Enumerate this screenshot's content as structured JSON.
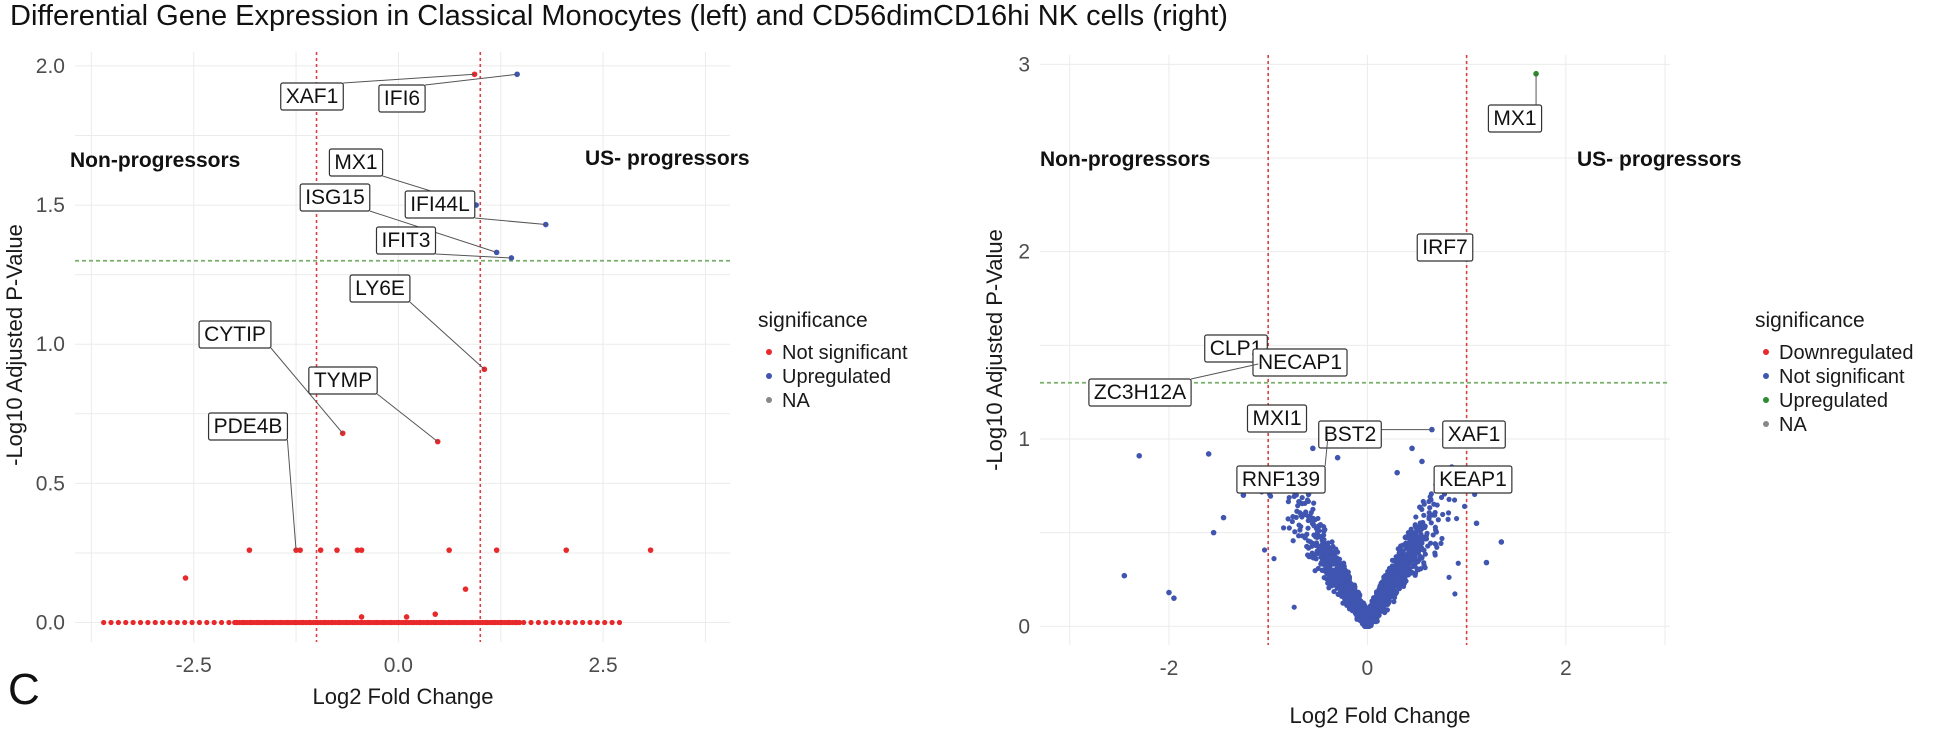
{
  "figure": {
    "title": "Differential Gene Expression in Classical Monocytes (left) and CD56dimCD16hi NK cells (right)",
    "panel_letter": "C"
  },
  "colors": {
    "red": "#e8292b",
    "blue": "#3f55b0",
    "green": "#2e8b2e",
    "grey": "#888888",
    "vline": "#d94040",
    "hline": "#77b06a",
    "grid": "#ebebeb"
  },
  "chart_data": [
    {
      "type": "scatter",
      "title": "",
      "xlabel": "Log2 Fold Change",
      "ylabel": "-Log10 Adjusted P-Value",
      "xlim": [
        -3.95,
        4.05
      ],
      "ylim": [
        -0.07,
        2.05
      ],
      "xticks": [
        -2.5,
        0.0,
        2.5
      ],
      "xtick_labels": [
        "-2.5",
        "0.0",
        "2.5"
      ],
      "yticks": [
        0.0,
        0.5,
        1.0,
        1.5,
        2.0
      ],
      "ytick_labels": [
        "0.0",
        "0.5",
        "1.0",
        "1.5",
        "2.0"
      ],
      "vlines": [
        -1,
        1
      ],
      "hline": 1.3,
      "group_labels": {
        "left": "Non-progressors",
        "right": "US- progressors"
      },
      "legend": {
        "title": "significance",
        "entries": [
          {
            "label": "Not significant",
            "color": "#e8292b"
          },
          {
            "label": "Upregulated",
            "color": "#3f55b0"
          },
          {
            "label": "NA",
            "color": "#888888"
          }
        ]
      },
      "series": [
        {
          "name": "Not significant",
          "color": "#e8292b",
          "points": [
            [
              0.93,
              1.97
            ],
            [
              1.05,
              0.91
            ],
            [
              0.48,
              0.65
            ],
            [
              -0.68,
              0.68
            ],
            [
              -1.82,
              0.26
            ],
            [
              -1.25,
              0.26
            ],
            [
              -1.2,
              0.26
            ],
            [
              -0.95,
              0.26
            ],
            [
              -0.75,
              0.26
            ],
            [
              -0.5,
              0.26
            ],
            [
              -0.45,
              0.26
            ],
            [
              0.62,
              0.26
            ],
            [
              1.2,
              0.26
            ],
            [
              2.05,
              0.26
            ],
            [
              3.08,
              0.26
            ],
            [
              -2.6,
              0.16
            ],
            [
              0.82,
              0.12
            ],
            [
              0.45,
              0.03
            ],
            [
              -0.45,
              0.02
            ],
            [
              0.1,
              0.02
            ]
          ]
        },
        {
          "name": "Upregulated",
          "color": "#3f55b0",
          "points": [
            [
              1.45,
              1.97
            ],
            [
              0.95,
              1.5
            ],
            [
              1.8,
              1.43
            ],
            [
              1.2,
              1.33
            ],
            [
              1.38,
              1.31
            ]
          ]
        },
        {
          "name": "baseline",
          "color": "#e8292b",
          "baseline": {
            "y": 0.0,
            "xmin": -3.6,
            "xmax": 2.7,
            "step": 0.09
          }
        }
      ],
      "annotations": [
        {
          "label": "XAF1",
          "x": 0.93,
          "y": 1.97
        },
        {
          "label": "IFI6",
          "x": 1.45,
          "y": 1.97
        },
        {
          "label": "MX1",
          "x": 0.95,
          "y": 1.5
        },
        {
          "label": "ISG15",
          "x": 1.2,
          "y": 1.33
        },
        {
          "label": "IFI44L",
          "x": 1.8,
          "y": 1.43
        },
        {
          "label": "IFIT3",
          "x": 1.38,
          "y": 1.31
        },
        {
          "label": "LY6E",
          "x": 1.05,
          "y": 0.91
        },
        {
          "label": "CYTIP",
          "x": -0.68,
          "y": 0.68
        },
        {
          "label": "TYMP",
          "x": 0.48,
          "y": 0.65
        },
        {
          "label": "PDE4B",
          "x": -1.25,
          "y": 0.26
        }
      ]
    },
    {
      "type": "scatter",
      "title": "",
      "xlabel": "Log2 Fold Change",
      "ylabel": "-Log10 Adjusted P-Value",
      "xlim": [
        -3.3,
        3.05
      ],
      "ylim": [
        -0.1,
        3.05
      ],
      "xticks": [
        -2,
        0,
        2
      ],
      "xtick_labels": [
        "-2",
        "0",
        "2"
      ],
      "yticks": [
        0,
        1,
        2,
        3
      ],
      "ytick_labels": [
        "0",
        "1",
        "2",
        "3"
      ],
      "vlines": [
        -1,
        1
      ],
      "hline": 1.3,
      "group_labels": {
        "left": "Non-progressors",
        "right": "US- progressors"
      },
      "legend": {
        "title": "significance",
        "entries": [
          {
            "label": "Downregulated",
            "color": "#e8292b"
          },
          {
            "label": "Not significant",
            "color": "#3f55b0"
          },
          {
            "label": "Upregulated",
            "color": "#2e8b2e"
          },
          {
            "label": "NA",
            "color": "#888888"
          }
        ]
      },
      "series": [
        {
          "name": "Downregulated",
          "color": "#e8292b",
          "points": [
            [
              -1.22,
              1.45
            ],
            [
              -1.1,
              1.4
            ]
          ]
        },
        {
          "name": "Upregulated",
          "color": "#2e8b2e",
          "points": [
            [
              1.7,
              2.95
            ]
          ]
        },
        {
          "name": "Not significant",
          "color": "#3f55b0",
          "points": [
            [
              0.72,
              2.02
            ],
            [
              -0.75,
              1.4
            ],
            [
              -0.82,
              1.1
            ],
            [
              0.65,
              1.05
            ],
            [
              1.0,
              1.0
            ],
            [
              -0.4,
              1.0
            ],
            [
              0.55,
              0.88
            ],
            [
              0.85,
              0.85
            ],
            [
              -2.3,
              0.91
            ],
            [
              -1.6,
              0.92
            ],
            [
              -2.45,
              0.27
            ],
            [
              -2.0,
              0.18
            ],
            [
              -1.95,
              0.15
            ],
            [
              -1.55,
              0.5
            ],
            [
              -1.45,
              0.58
            ],
            [
              1.2,
              0.34
            ],
            [
              1.35,
              0.45
            ],
            [
              -0.55,
              0.95
            ],
            [
              0.3,
              0.82
            ],
            [
              -1.25,
              0.7
            ],
            [
              1.1,
              0.55
            ],
            [
              -0.3,
              0.9
            ],
            [
              0.45,
              0.95
            ]
          ]
        }
      ],
      "volcano_cloud": {
        "color": "#3f55b0",
        "count": 1400,
        "xspread": 0.6,
        "ymax": 0.8
      },
      "annotations": [
        {
          "label": "MX1",
          "x": 1.7,
          "y": 2.95
        },
        {
          "label": "IRF7",
          "x": 0.72,
          "y": 2.02
        },
        {
          "label": "CLP1",
          "x": -1.22,
          "y": 1.45
        },
        {
          "label": "NECAP1",
          "x": -0.75,
          "y": 1.4
        },
        {
          "label": "ZC3H12A",
          "x": -1.1,
          "y": 1.4
        },
        {
          "label": "MXI1",
          "x": -0.82,
          "y": 1.1
        },
        {
          "label": "BST2",
          "x": 0.65,
          "y": 1.05
        },
        {
          "label": "XAF1",
          "x": 1.0,
          "y": 1.0
        },
        {
          "label": "RNF139",
          "x": -0.4,
          "y": 1.0
        },
        {
          "label": "KEAP1",
          "x": 0.85,
          "y": 0.85
        }
      ]
    }
  ]
}
